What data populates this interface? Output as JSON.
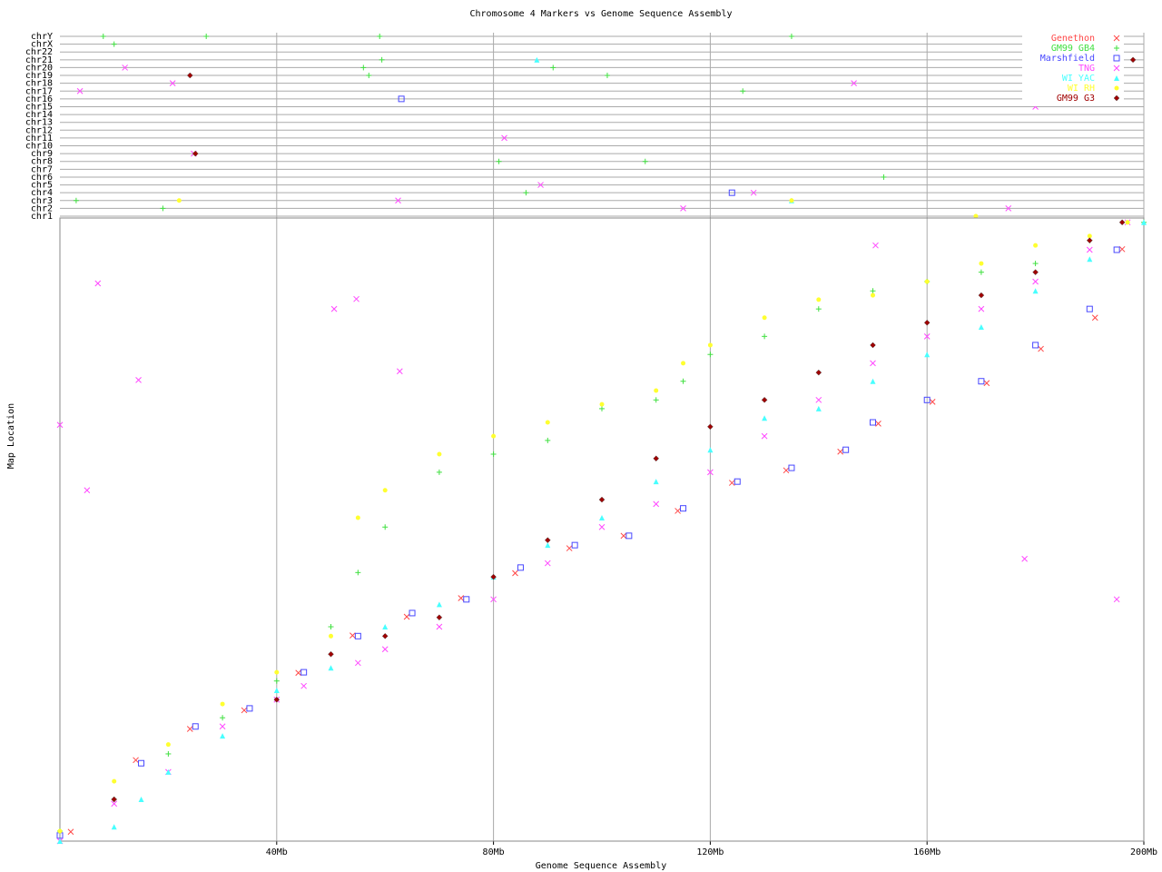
{
  "chart_data": [
    {
      "type": "scatter",
      "title": "Chromosome 4 Markers vs Genome Sequence Assembly",
      "x_label": "Genome Sequence Assembly",
      "y_label": "Map Location",
      "xlim": [
        0,
        200
      ],
      "ylim": [
        0,
        100
      ],
      "xticks": [
        {
          "value": 40,
          "label": "40Mb"
        },
        {
          "value": 80,
          "label": "80Mb"
        },
        {
          "value": 120,
          "label": "120Mb"
        },
        {
          "value": 160,
          "label": "160Mb"
        },
        {
          "value": 200,
          "label": "200Mb"
        }
      ],
      "grid": true,
      "legend": "upper right",
      "series": [
        {
          "name": "Genethon",
          "color": "#ff4848",
          "marker": "x",
          "x": [
            2,
            14,
            24,
            34,
            44,
            54,
            64,
            74,
            84,
            94,
            104,
            114,
            124,
            134,
            144,
            151,
            161,
            171,
            181,
            191,
            196
          ],
          "y": [
            1.5,
            13,
            18,
            21,
            27,
            33,
            36,
            39,
            43,
            47,
            49,
            53,
            57.5,
            59.5,
            62.5,
            67,
            70.5,
            73.5,
            79,
            84,
            95
          ]
        },
        {
          "name": "GM99 GB4",
          "color": "#40e040",
          "marker": "plus",
          "x": [
            0,
            10,
            20,
            30,
            40,
            50,
            55,
            60,
            70,
            80,
            90,
            100,
            110,
            115,
            120,
            130,
            140,
            150,
            160,
            170,
            180,
            190,
            200
          ],
          "y": [
            1.6,
            6.7,
            14,
            19.8,
            25.7,
            34.4,
            43.1,
            50.4,
            59.2,
            62.1,
            64.3,
            69.4,
            70.8,
            73.8,
            78.1,
            81,
            85.4,
            88.3,
            89.8,
            91.3,
            92.7,
            96.4,
            99.3
          ]
        },
        {
          "name": "Marshfield",
          "color": "#4848ff",
          "marker": "square",
          "x": [
            0,
            15,
            25,
            35,
            45,
            55,
            65,
            75,
            85,
            95,
            105,
            115,
            125,
            135,
            145,
            150,
            160,
            170,
            180,
            190,
            195
          ],
          "y": [
            0.9,
            12.5,
            18.4,
            21.3,
            27.1,
            32.9,
            36.6,
            38.8,
            43.9,
            47.5,
            49,
            53.4,
            57.7,
            59.9,
            62.8,
            67.2,
            70.8,
            73.8,
            79.6,
            85.4,
            94.9
          ]
        },
        {
          "name": "TNG",
          "color": "#ff48ff",
          "marker": "x",
          "x": [
            0,
            10,
            20,
            30,
            40,
            45,
            55,
            60,
            70,
            80,
            90,
            100,
            110,
            120,
            130,
            140,
            150,
            160,
            170,
            180,
            190,
            197,
            0,
            5,
            7,
            14.5,
            50.6,
            54.7,
            62.7,
            150.5,
            195,
            178
          ],
          "y": [
            0,
            6,
            11.1,
            18.4,
            22.7,
            24.9,
            28.6,
            30.8,
            34.4,
            38.8,
            44.6,
            50.4,
            54.1,
            59.2,
            65,
            70.8,
            76.7,
            81,
            85.4,
            89.8,
            94.9,
            99.3,
            66.8,
            56.3,
            89.5,
            74,
            85.4,
            87,
            75.4,
            95.6,
            38.8,
            45.3
          ]
        },
        {
          "name": "WI YAC",
          "color": "#48ffff",
          "marker": "triangle",
          "x": [
            0,
            10,
            15,
            20,
            30,
            40,
            50,
            60,
            70,
            80,
            90,
            100,
            110,
            120,
            130,
            140,
            150,
            160,
            170,
            180,
            190,
            200
          ],
          "y": [
            0,
            2.3,
            6.7,
            11.1,
            16.9,
            24.2,
            27.8,
            34.4,
            38,
            42.4,
            47.5,
            51.9,
            57.7,
            62.8,
            67.9,
            69.4,
            73.8,
            78.1,
            82.5,
            88.3,
            93.4,
            99.3
          ]
        },
        {
          "name": "WI RH",
          "color": "#ffff30",
          "marker": "circle",
          "x": [
            0,
            10,
            20,
            30,
            40,
            50,
            55,
            60,
            70,
            80,
            90,
            100,
            110,
            115,
            120,
            130,
            140,
            150,
            160,
            170,
            180,
            190,
            197
          ],
          "y": [
            1.6,
            9.6,
            15.5,
            22,
            27.1,
            32.9,
            51.9,
            56.3,
            62.1,
            65,
            67.2,
            70.1,
            72.3,
            76.7,
            79.6,
            84,
            86.9,
            87.6,
            89.8,
            92.7,
            95.6,
            97.1,
            99.3
          ]
        },
        {
          "name": "GM99 G3",
          "color": "#a00000",
          "marker": "diamond",
          "x": [
            10,
            40,
            50,
            60,
            70,
            80,
            90,
            100,
            110,
            120,
            130,
            140,
            150,
            160,
            170,
            180,
            190,
            196
          ],
          "y": [
            6.7,
            22.7,
            30,
            32.9,
            35.9,
            42.4,
            48.3,
            54.8,
            61.4,
            66.5,
            70.8,
            75.2,
            79.6,
            83.2,
            87.6,
            91.3,
            96.4,
            99.3
          ]
        }
      ]
    },
    {
      "type": "strip",
      "xlim": [
        0,
        200
      ],
      "ycategories": [
        "chr1",
        "chr2",
        "chr3",
        "chr4",
        "chr5",
        "chr6",
        "chr7",
        "chr8",
        "chr9",
        "chr10",
        "chr11",
        "chr12",
        "chr13",
        "chr14",
        "chr15",
        "chr16",
        "chr17",
        "chr18",
        "chr19",
        "chr20",
        "chr21",
        "chr22",
        "chrX",
        "chrY"
      ],
      "series": [
        {
          "color": "#40e040",
          "marker": "plus",
          "x": [
            8,
            10,
            27,
            59,
            56,
            59.4,
            57,
            81,
            86,
            91,
            101,
            108,
            126,
            135,
            152,
            3,
            19
          ],
          "y": [
            "chrY",
            "chrX",
            "chrY",
            "chrY",
            "chr20",
            "chr21",
            "chr19",
            "chr8",
            "chr4",
            "chr20",
            "chr19",
            "chr8",
            "chr17",
            "chrY",
            "chr6",
            "chr3",
            "chr2"
          ]
        },
        {
          "color": "#4848ff",
          "marker": "square",
          "x": [
            63,
            124
          ],
          "y": [
            "chr16",
            "chr4"
          ]
        },
        {
          "color": "#ff48ff",
          "marker": "x",
          "x": [
            3.7,
            12,
            20.8,
            24.7,
            62.4,
            82,
            88.7,
            115,
            128,
            146.5,
            175,
            180
          ],
          "y": [
            "chr17",
            "chr20",
            "chr18",
            "chr9",
            "chr3",
            "chr11",
            "chr5",
            "chr2",
            "chr4",
            "chr18",
            "chr2",
            "chr15"
          ]
        },
        {
          "color": "#48ffff",
          "marker": "triangle",
          "x": [
            88,
            135
          ],
          "y": [
            "chr21",
            "chr3"
          ]
        },
        {
          "color": "#ffff30",
          "marker": "circle",
          "x": [
            22,
            25,
            135,
            169
          ],
          "y": [
            "chr3",
            "chr9",
            "chr3",
            "chr1"
          ]
        },
        {
          "color": "#a00000",
          "marker": "diamond",
          "x": [
            24,
            25,
            198
          ],
          "y": [
            "chr19",
            "chr9",
            "chr21"
          ]
        }
      ]
    }
  ]
}
